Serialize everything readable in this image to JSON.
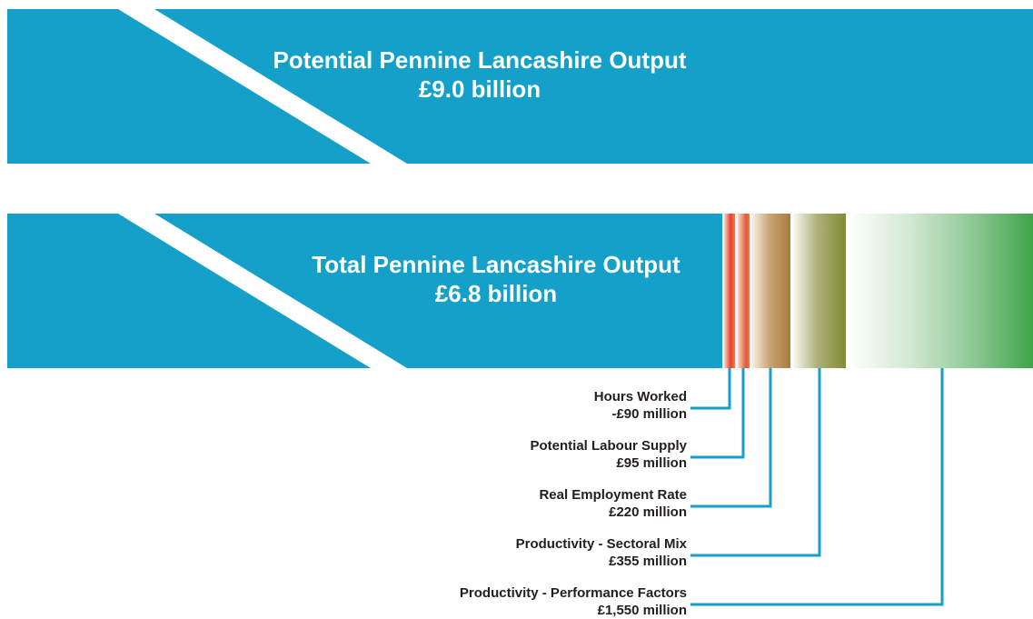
{
  "potential": {
    "title": "Potential Pennine Lancashire Output",
    "value": "£9.0 billion"
  },
  "total": {
    "title": "Total Pennine Lancashire Output",
    "value": "£6.8 billion"
  },
  "components": [
    {
      "name": "Hours Worked",
      "value": "-£90 million"
    },
    {
      "name": "Potential Labour Supply",
      "value": "£95 million"
    },
    {
      "name": "Real Employment Rate",
      "value": "£220 million"
    },
    {
      "name": "Productivity - Sectoral Mix",
      "value": "£355 million"
    },
    {
      "name": "Productivity - Performance Factors",
      "value": "£1,550 million"
    }
  ],
  "colors": {
    "band": "#14a0c8",
    "hours_worked": "#e8412a",
    "labour_supply": "#e05a36",
    "employment_rate": "#a87a3c",
    "sectoral_mix": "#7e8a34",
    "performance": "#3fa44a",
    "connector": "#14a0c8"
  }
}
